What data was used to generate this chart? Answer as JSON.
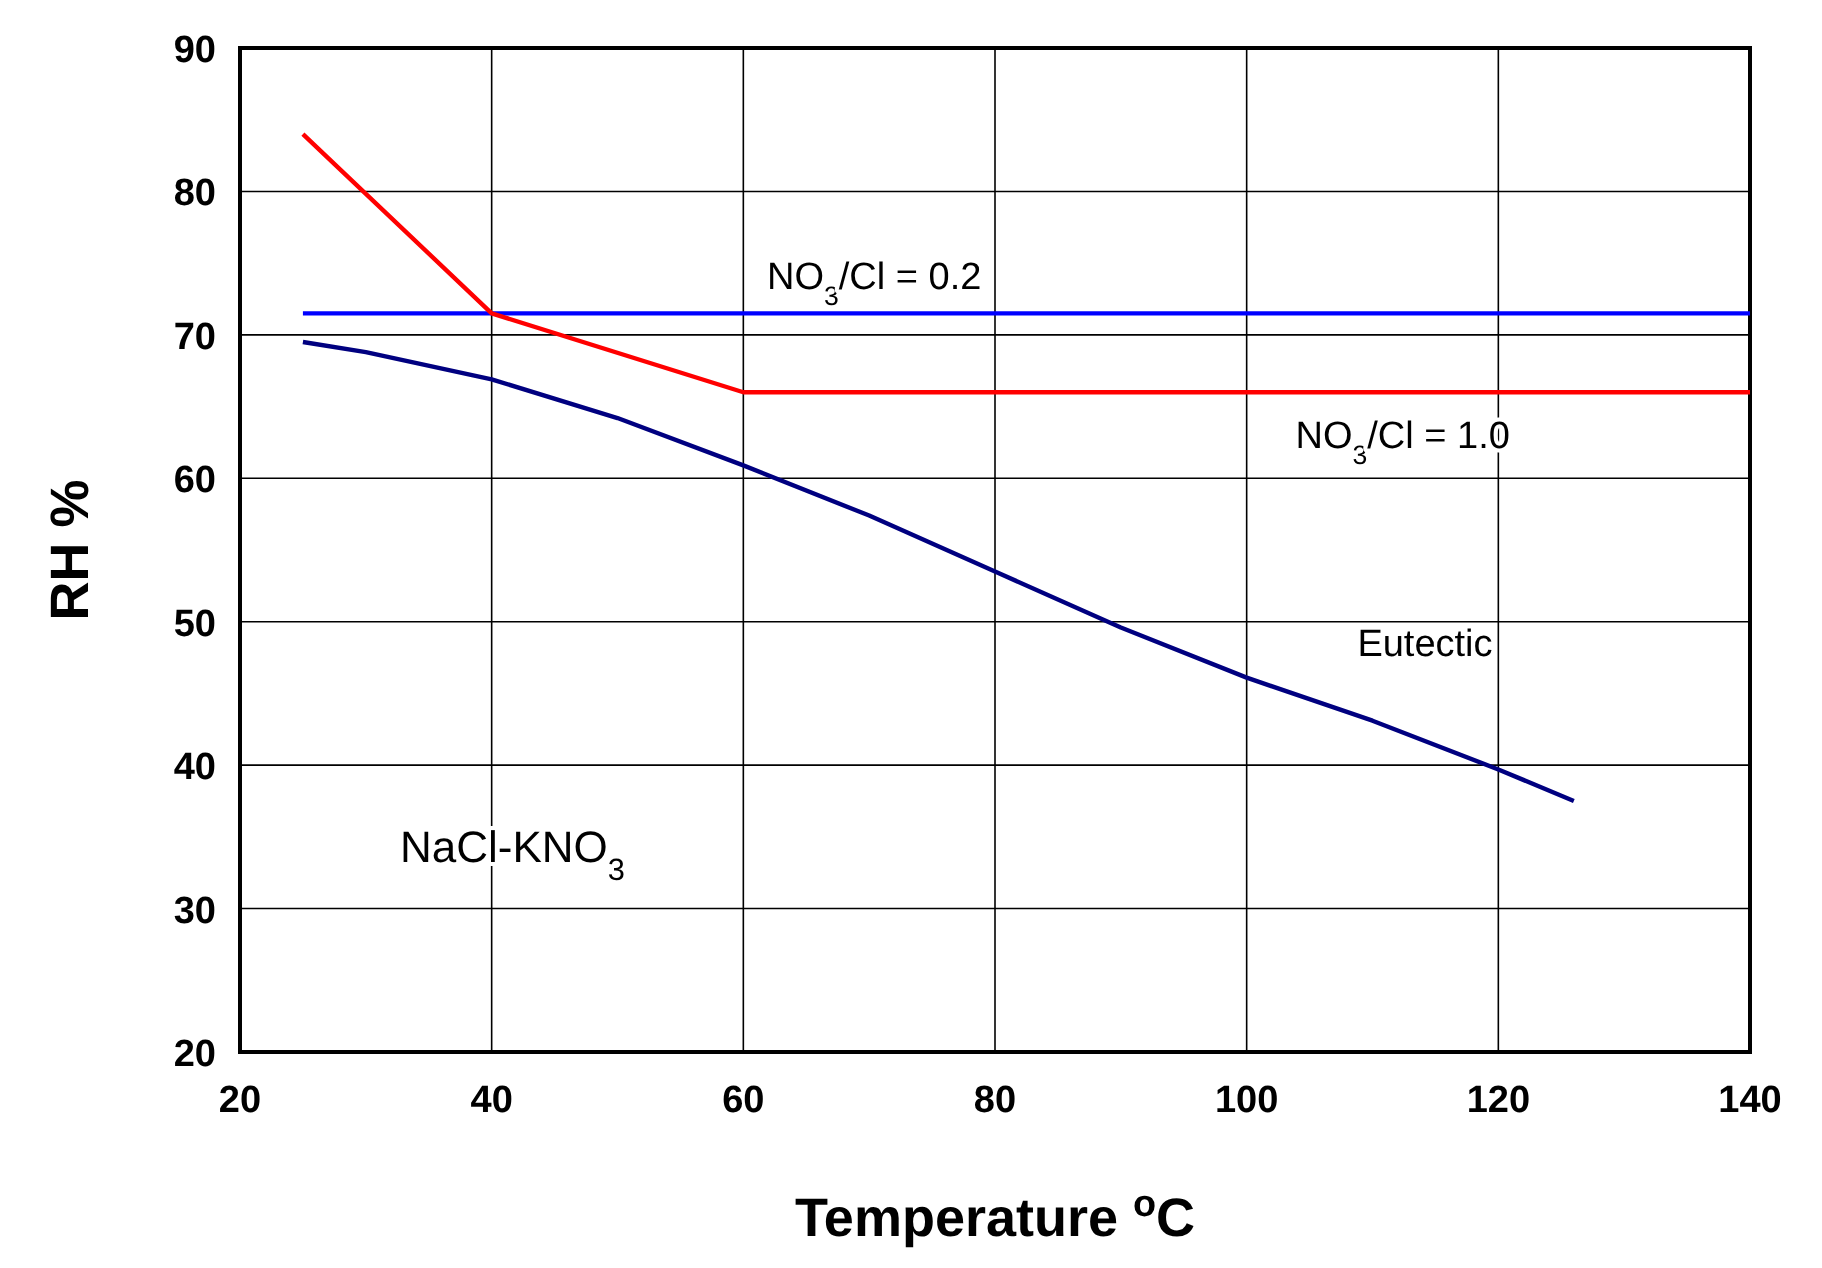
{
  "chart_data": {
    "type": "line",
    "xlabel": "Temperature $^{o}$C",
    "ylabel": "RH %",
    "xlim": [
      20,
      140
    ],
    "xticks": [
      20,
      40,
      60,
      80,
      100,
      120,
      140
    ],
    "ylim": [
      20,
      90
    ],
    "yticks": [
      20,
      30,
      40,
      50,
      60,
      70,
      80,
      90
    ],
    "grid": true,
    "legend": false,
    "marker": "none",
    "line_style": "solid",
    "series": [
      {
        "name": "NO$_{3}$/Cl = 0.2",
        "color": "#0000ff",
        "x": [
          25,
          140
        ],
        "values": [
          71.5,
          71.5
        ]
      },
      {
        "name": "NO$_{3}$/Cl = 1.0",
        "color": "#ff0000",
        "x": [
          25,
          40,
          60,
          140
        ],
        "values": [
          84,
          71.5,
          66,
          66
        ]
      },
      {
        "name": "Eutectic",
        "color": "#000080",
        "x": [
          25,
          30,
          40,
          50,
          60,
          70,
          80,
          90,
          100,
          110,
          120,
          126
        ],
        "values": [
          69.5,
          68.8,
          66.9,
          64.2,
          60.9,
          57.4,
          53.5,
          49.6,
          46.1,
          43.1,
          39.7,
          37.5
        ]
      }
    ],
    "annotations": [
      "NaCl-KNO$_{3}$"
    ]
  }
}
